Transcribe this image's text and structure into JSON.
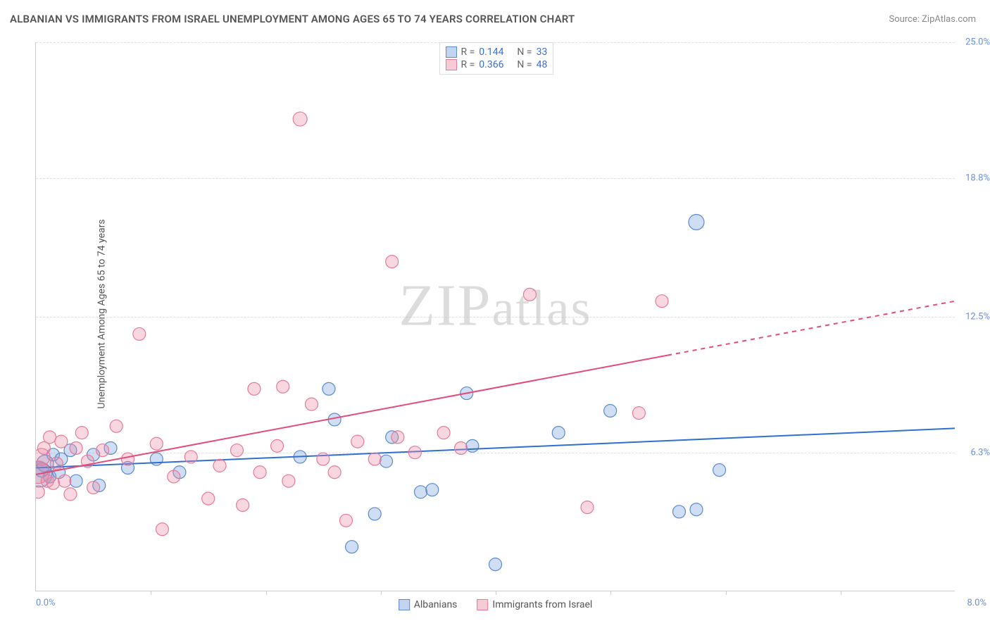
{
  "title": "ALBANIAN VS IMMIGRANTS FROM ISRAEL UNEMPLOYMENT AMONG AGES 65 TO 74 YEARS CORRELATION CHART",
  "source_prefix": "Source: ",
  "source_link": "ZipAtlas.com",
  "ylabel": "Unemployment Among Ages 65 to 74 years",
  "watermark": "ZIPatlas",
  "chart": {
    "type": "scatter",
    "background_color": "#ffffff",
    "grid_color": "#e0e0e0",
    "axis_color": "#cccccc",
    "xlim": [
      0.0,
      8.0
    ],
    "ylim": [
      0.0,
      25.0
    ],
    "y_ticks": [
      6.3,
      12.5,
      18.8,
      25.0
    ],
    "y_tick_labels": [
      "6.3%",
      "12.5%",
      "18.8%",
      "25.0%"
    ],
    "x_tick_labels_shown": {
      "0.0": "0.0%",
      "8.0": "8.0%"
    },
    "x_ticks": [
      1.0,
      2.0,
      3.0,
      4.0,
      5.0,
      6.0,
      7.0
    ],
    "axis_label_color": "#6a8fd8",
    "axis_label_fontsize": 13,
    "series": [
      {
        "name": "Albanians",
        "color_fill": "rgba(120,160,220,0.35)",
        "color_stroke": "#5a8ad0",
        "marker_radius": 9,
        "R": 0.144,
        "N": 33,
        "trend": {
          "y_at_x0": 5.6,
          "y_at_xmax": 7.4,
          "color": "#2f6fd0",
          "width": 2,
          "dash": null
        },
        "points": [
          {
            "x": 0.03,
            "y": 5.3,
            "r": 18
          },
          {
            "x": 0.05,
            "y": 5.5,
            "r": 10
          },
          {
            "x": 0.08,
            "y": 5.8,
            "r": 12
          },
          {
            "x": 0.12,
            "y": 5.2,
            "r": 9
          },
          {
            "x": 0.15,
            "y": 6.2,
            "r": 9
          },
          {
            "x": 0.2,
            "y": 5.4,
            "r": 9
          },
          {
            "x": 0.22,
            "y": 6.0,
            "r": 9
          },
          {
            "x": 0.3,
            "y": 6.4,
            "r": 9
          },
          {
            "x": 0.35,
            "y": 5.0,
            "r": 9
          },
          {
            "x": 0.5,
            "y": 6.2,
            "r": 9
          },
          {
            "x": 0.55,
            "y": 4.8,
            "r": 9
          },
          {
            "x": 0.65,
            "y": 6.5,
            "r": 9
          },
          {
            "x": 0.8,
            "y": 5.6,
            "r": 9
          },
          {
            "x": 1.05,
            "y": 6.0,
            "r": 9
          },
          {
            "x": 1.25,
            "y": 5.4,
            "r": 9
          },
          {
            "x": 2.3,
            "y": 6.1,
            "r": 9
          },
          {
            "x": 2.55,
            "y": 9.2,
            "r": 9
          },
          {
            "x": 2.6,
            "y": 7.8,
            "r": 9
          },
          {
            "x": 2.75,
            "y": 2.0,
            "r": 9
          },
          {
            "x": 2.95,
            "y": 3.5,
            "r": 9
          },
          {
            "x": 3.05,
            "y": 5.9,
            "r": 9
          },
          {
            "x": 3.1,
            "y": 7.0,
            "r": 9
          },
          {
            "x": 3.35,
            "y": 4.5,
            "r": 9
          },
          {
            "x": 3.45,
            "y": 4.6,
            "r": 9
          },
          {
            "x": 3.75,
            "y": 9.0,
            "r": 9
          },
          {
            "x": 3.8,
            "y": 6.6,
            "r": 9
          },
          {
            "x": 4.0,
            "y": 1.2,
            "r": 9
          },
          {
            "x": 4.55,
            "y": 7.2,
            "r": 9
          },
          {
            "x": 5.0,
            "y": 8.2,
            "r": 9
          },
          {
            "x": 5.6,
            "y": 3.6,
            "r": 9
          },
          {
            "x": 5.75,
            "y": 3.7,
            "r": 9
          },
          {
            "x": 5.95,
            "y": 5.5,
            "r": 9
          },
          {
            "x": 5.75,
            "y": 16.8,
            "r": 11
          }
        ]
      },
      {
        "name": "Immigrants from Israel",
        "color_fill": "rgba(235,140,165,0.35)",
        "color_stroke": "#e67a98",
        "marker_radius": 9,
        "R": 0.366,
        "N": 48,
        "trend": {
          "y_at_x0": 5.3,
          "y_at_xmax": 13.2,
          "solid_until_x": 5.5,
          "color": "#e34b78",
          "width": 2,
          "dash": "6,6"
        },
        "points": [
          {
            "x": 0.02,
            "y": 5.4,
            "r": 16
          },
          {
            "x": 0.02,
            "y": 4.5,
            "r": 9
          },
          {
            "x": 0.05,
            "y": 6.1,
            "r": 12
          },
          {
            "x": 0.07,
            "y": 6.5,
            "r": 9
          },
          {
            "x": 0.1,
            "y": 5.0,
            "r": 9
          },
          {
            "x": 0.12,
            "y": 7.0,
            "r": 9
          },
          {
            "x": 0.15,
            "y": 4.9,
            "r": 9
          },
          {
            "x": 0.18,
            "y": 5.8,
            "r": 9
          },
          {
            "x": 0.22,
            "y": 6.8,
            "r": 9
          },
          {
            "x": 0.25,
            "y": 5.0,
            "r": 9
          },
          {
            "x": 0.3,
            "y": 4.4,
            "r": 9
          },
          {
            "x": 0.35,
            "y": 6.5,
            "r": 9
          },
          {
            "x": 0.4,
            "y": 7.2,
            "r": 9
          },
          {
            "x": 0.45,
            "y": 5.9,
            "r": 9
          },
          {
            "x": 0.5,
            "y": 4.7,
            "r": 9
          },
          {
            "x": 0.58,
            "y": 6.4,
            "r": 9
          },
          {
            "x": 0.7,
            "y": 7.5,
            "r": 9
          },
          {
            "x": 0.8,
            "y": 6.0,
            "r": 9
          },
          {
            "x": 0.9,
            "y": 11.7,
            "r": 9
          },
          {
            "x": 1.05,
            "y": 6.7,
            "r": 9
          },
          {
            "x": 1.1,
            "y": 2.8,
            "r": 9
          },
          {
            "x": 1.2,
            "y": 5.2,
            "r": 9
          },
          {
            "x": 1.35,
            "y": 6.1,
            "r": 9
          },
          {
            "x": 1.5,
            "y": 4.2,
            "r": 9
          },
          {
            "x": 1.6,
            "y": 5.7,
            "r": 9
          },
          {
            "x": 1.75,
            "y": 6.4,
            "r": 9
          },
          {
            "x": 1.8,
            "y": 3.9,
            "r": 9
          },
          {
            "x": 1.9,
            "y": 9.2,
            "r": 9
          },
          {
            "x": 1.95,
            "y": 5.4,
            "r": 9
          },
          {
            "x": 2.1,
            "y": 6.6,
            "r": 9
          },
          {
            "x": 2.15,
            "y": 9.3,
            "r": 9
          },
          {
            "x": 2.2,
            "y": 5.0,
            "r": 9
          },
          {
            "x": 2.3,
            "y": 21.5,
            "r": 10
          },
          {
            "x": 2.4,
            "y": 8.5,
            "r": 9
          },
          {
            "x": 2.5,
            "y": 6.0,
            "r": 9
          },
          {
            "x": 2.6,
            "y": 5.4,
            "r": 9
          },
          {
            "x": 2.7,
            "y": 3.2,
            "r": 9
          },
          {
            "x": 2.8,
            "y": 6.8,
            "r": 9
          },
          {
            "x": 2.95,
            "y": 6.0,
            "r": 9
          },
          {
            "x": 3.1,
            "y": 15.0,
            "r": 9
          },
          {
            "x": 3.15,
            "y": 7.0,
            "r": 9
          },
          {
            "x": 3.3,
            "y": 6.3,
            "r": 9
          },
          {
            "x": 3.55,
            "y": 7.2,
            "r": 9
          },
          {
            "x": 3.7,
            "y": 6.5,
            "r": 9
          },
          {
            "x": 4.3,
            "y": 13.5,
            "r": 9
          },
          {
            "x": 4.8,
            "y": 3.8,
            "r": 9
          },
          {
            "x": 5.25,
            "y": 8.1,
            "r": 9
          },
          {
            "x": 5.45,
            "y": 13.2,
            "r": 9
          }
        ]
      }
    ]
  },
  "stat_legend": {
    "rows": [
      {
        "swatch_fill": "rgba(120,160,220,0.45)",
        "swatch_border": "#5a8ad0",
        "r_label": "R =",
        "r_val": "0.144",
        "n_label": "N =",
        "n_val": "33"
      },
      {
        "swatch_fill": "rgba(235,140,165,0.45)",
        "swatch_border": "#e67a98",
        "r_label": "R =",
        "r_val": "0.366",
        "n_label": "N =",
        "n_val": "48"
      }
    ]
  },
  "bottom_legend": {
    "items": [
      {
        "swatch_fill": "rgba(120,160,220,0.45)",
        "swatch_border": "#5a8ad0",
        "label": "Albanians"
      },
      {
        "swatch_fill": "rgba(235,140,165,0.45)",
        "swatch_border": "#e67a98",
        "label": "Immigrants from Israel"
      }
    ]
  }
}
